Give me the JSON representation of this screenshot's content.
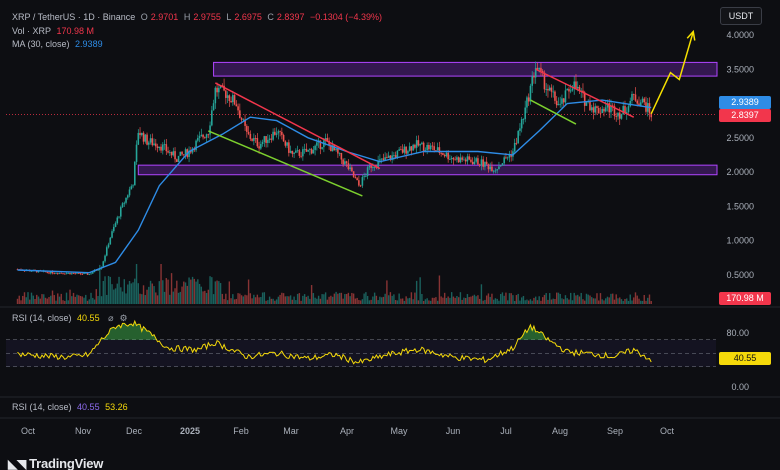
{
  "header": {
    "symbol_line": "XRP / TetherUS · 1D · Binance",
    "ohlc": {
      "o_label": "O",
      "o": "2.9701",
      "h_label": "H",
      "h": "2.9755",
      "l_label": "L",
      "l": "2.6975",
      "c_label": "C",
      "c": "2.8397",
      "change": "−0.1304 (−4.39%)"
    },
    "vol_label": "Vol · XRP",
    "vol_value": "170.98 M",
    "ma_label": "MA (30, close)",
    "ma_value": "2.9389"
  },
  "currency_button": "USDT",
  "price_tags": {
    "ma": "2.9389",
    "close": "2.8397",
    "volume": "170.98 M",
    "rsi": "40.55"
  },
  "rsi_legend_1": {
    "label": "RSI (14, close)",
    "value": "40.55"
  },
  "rsi_legend_2": {
    "label": "RSI (14, close)",
    "value1": "40.55",
    "value2": "53.26"
  },
  "brand": "TradingView",
  "colors": {
    "bg": "#0d0e12",
    "up": "#26a69a",
    "down": "#ef5350",
    "ma": "#2e8ce6",
    "rsi": "#f5d90a",
    "zone": "#9a34f0",
    "trend_red": "#f2364c",
    "trend_green": "#7ccf2e",
    "arrow": "#f5e000"
  },
  "chart_data": {
    "type": "line",
    "description_series": "XRP daily close (approximate)",
    "x_ticks": [
      "Oct",
      "Nov",
      "Dec",
      "2025",
      "Feb",
      "Mar",
      "Apr",
      "May",
      "Jun",
      "Jul",
      "Aug",
      "Sep",
      "Oct"
    ],
    "y_ticks": [
      "4.0000",
      "3.5000",
      "3.0000",
      "2.5000",
      "2.0000",
      "1.5000",
      "1.0000",
      "0.5000"
    ],
    "rsi_ticks": [
      "80.00",
      "40.00",
      "0.00"
    ],
    "ylim": [
      0.0,
      4.2
    ],
    "price_path": [
      [
        "2024-09-25",
        0.58
      ],
      [
        "2024-10-10",
        0.54
      ],
      [
        "2024-10-25",
        0.52
      ],
      [
        "2024-11-05",
        0.51
      ],
      [
        "2024-11-12",
        0.62
      ],
      [
        "2024-11-17",
        1.05
      ],
      [
        "2024-11-23",
        1.45
      ],
      [
        "2024-11-30",
        1.85
      ],
      [
        "2024-12-03",
        2.6
      ],
      [
        "2024-12-08",
        2.45
      ],
      [
        "2024-12-15",
        2.4
      ],
      [
        "2024-12-25",
        2.2
      ],
      [
        "2025-01-01",
        2.3
      ],
      [
        "2025-01-06",
        2.45
      ],
      [
        "2025-01-12",
        2.6
      ],
      [
        "2025-01-16",
        3.2
      ],
      [
        "2025-01-22",
        3.15
      ],
      [
        "2025-01-28",
        3.0
      ],
      [
        "2025-02-03",
        2.55
      ],
      [
        "2025-02-10",
        2.4
      ],
      [
        "2025-02-20",
        2.6
      ],
      [
        "2025-03-01",
        2.25
      ],
      [
        "2025-03-10",
        2.3
      ],
      [
        "2025-03-20",
        2.45
      ],
      [
        "2025-04-01",
        2.1
      ],
      [
        "2025-04-08",
        1.8
      ],
      [
        "2025-04-15",
        2.1
      ],
      [
        "2025-04-25",
        2.2
      ],
      [
        "2025-05-10",
        2.4
      ],
      [
        "2025-05-20",
        2.35
      ],
      [
        "2025-06-01",
        2.2
      ],
      [
        "2025-06-15",
        2.15
      ],
      [
        "2025-06-25",
        2.05
      ],
      [
        "2025-07-05",
        2.3
      ],
      [
        "2025-07-12",
        2.9
      ],
      [
        "2025-07-18",
        3.55
      ],
      [
        "2025-07-25",
        3.2
      ],
      [
        "2025-08-01",
        2.95
      ],
      [
        "2025-08-08",
        3.3
      ],
      [
        "2025-08-15",
        3.05
      ],
      [
        "2025-08-22",
        2.9
      ],
      [
        "2025-08-28",
        2.95
      ],
      [
        "2025-09-05",
        2.85
      ],
      [
        "2025-09-12",
        3.1
      ],
      [
        "2025-09-18",
        3.0
      ],
      [
        "2025-09-22",
        2.84
      ]
    ],
    "ma_path": [
      [
        "2024-09-25",
        0.57
      ],
      [
        "2024-11-05",
        0.53
      ],
      [
        "2024-11-20",
        0.68
      ],
      [
        "2024-12-03",
        1.15
      ],
      [
        "2024-12-15",
        1.8
      ],
      [
        "2025-01-01",
        2.3
      ],
      [
        "2025-01-20",
        2.55
      ],
      [
        "2025-02-05",
        2.8
      ],
      [
        "2025-02-20",
        2.75
      ],
      [
        "2025-03-10",
        2.5
      ],
      [
        "2025-04-01",
        2.3
      ],
      [
        "2025-04-20",
        2.15
      ],
      [
        "2025-05-15",
        2.3
      ],
      [
        "2025-06-15",
        2.3
      ],
      [
        "2025-07-05",
        2.25
      ],
      [
        "2025-07-20",
        2.6
      ],
      [
        "2025-08-05",
        3.0
      ],
      [
        "2025-08-25",
        3.05
      ],
      [
        "2025-09-22",
        2.94
      ]
    ],
    "rsi_path": [
      [
        "2024-09-25",
        49
      ],
      [
        "2024-10-10",
        46
      ],
      [
        "2024-10-25",
        44
      ],
      [
        "2024-11-05",
        48
      ],
      [
        "2024-11-12",
        70
      ],
      [
        "2024-11-20",
        90
      ],
      [
        "2024-11-30",
        95
      ],
      [
        "2024-12-08",
        82
      ],
      [
        "2024-12-20",
        58
      ],
      [
        "2025-01-06",
        55
      ],
      [
        "2025-01-16",
        66
      ],
      [
        "2025-02-03",
        45
      ],
      [
        "2025-02-20",
        50
      ],
      [
        "2025-03-10",
        42
      ],
      [
        "2025-03-25",
        48
      ],
      [
        "2025-04-08",
        36
      ],
      [
        "2025-04-25",
        48
      ],
      [
        "2025-05-12",
        56
      ],
      [
        "2025-06-01",
        44
      ],
      [
        "2025-06-20",
        40
      ],
      [
        "2025-07-05",
        58
      ],
      [
        "2025-07-15",
        90
      ],
      [
        "2025-07-25",
        70
      ],
      [
        "2025-08-05",
        52
      ],
      [
        "2025-08-20",
        49
      ],
      [
        "2025-09-01",
        45
      ],
      [
        "2025-09-12",
        55
      ],
      [
        "2025-09-22",
        40.55
      ]
    ],
    "resistance_zone": [
      3.4,
      3.6
    ],
    "support_zone": [
      1.96,
      2.1
    ],
    "annotations": {
      "red_trend": [
        [
          "2025-01-16",
          3.3
        ],
        [
          "2025-04-20",
          2.05
        ]
      ],
      "green_trend": [
        [
          "2025-01-12",
          2.6
        ],
        [
          "2025-04-10",
          1.65
        ]
      ],
      "red_trend_2": [
        [
          "2025-07-18",
          3.5
        ],
        [
          "2025-09-12",
          2.8
        ]
      ],
      "green_trend_2": [
        [
          "2025-07-15",
          3.05
        ],
        [
          "2025-08-10",
          2.7
        ]
      ],
      "arrow_path": [
        [
          "2025-09-22",
          2.85
        ],
        [
          "2025-10-03",
          3.45
        ],
        [
          "2025-10-08",
          3.35
        ],
        [
          "2025-10-16",
          4.05
        ]
      ]
    }
  }
}
